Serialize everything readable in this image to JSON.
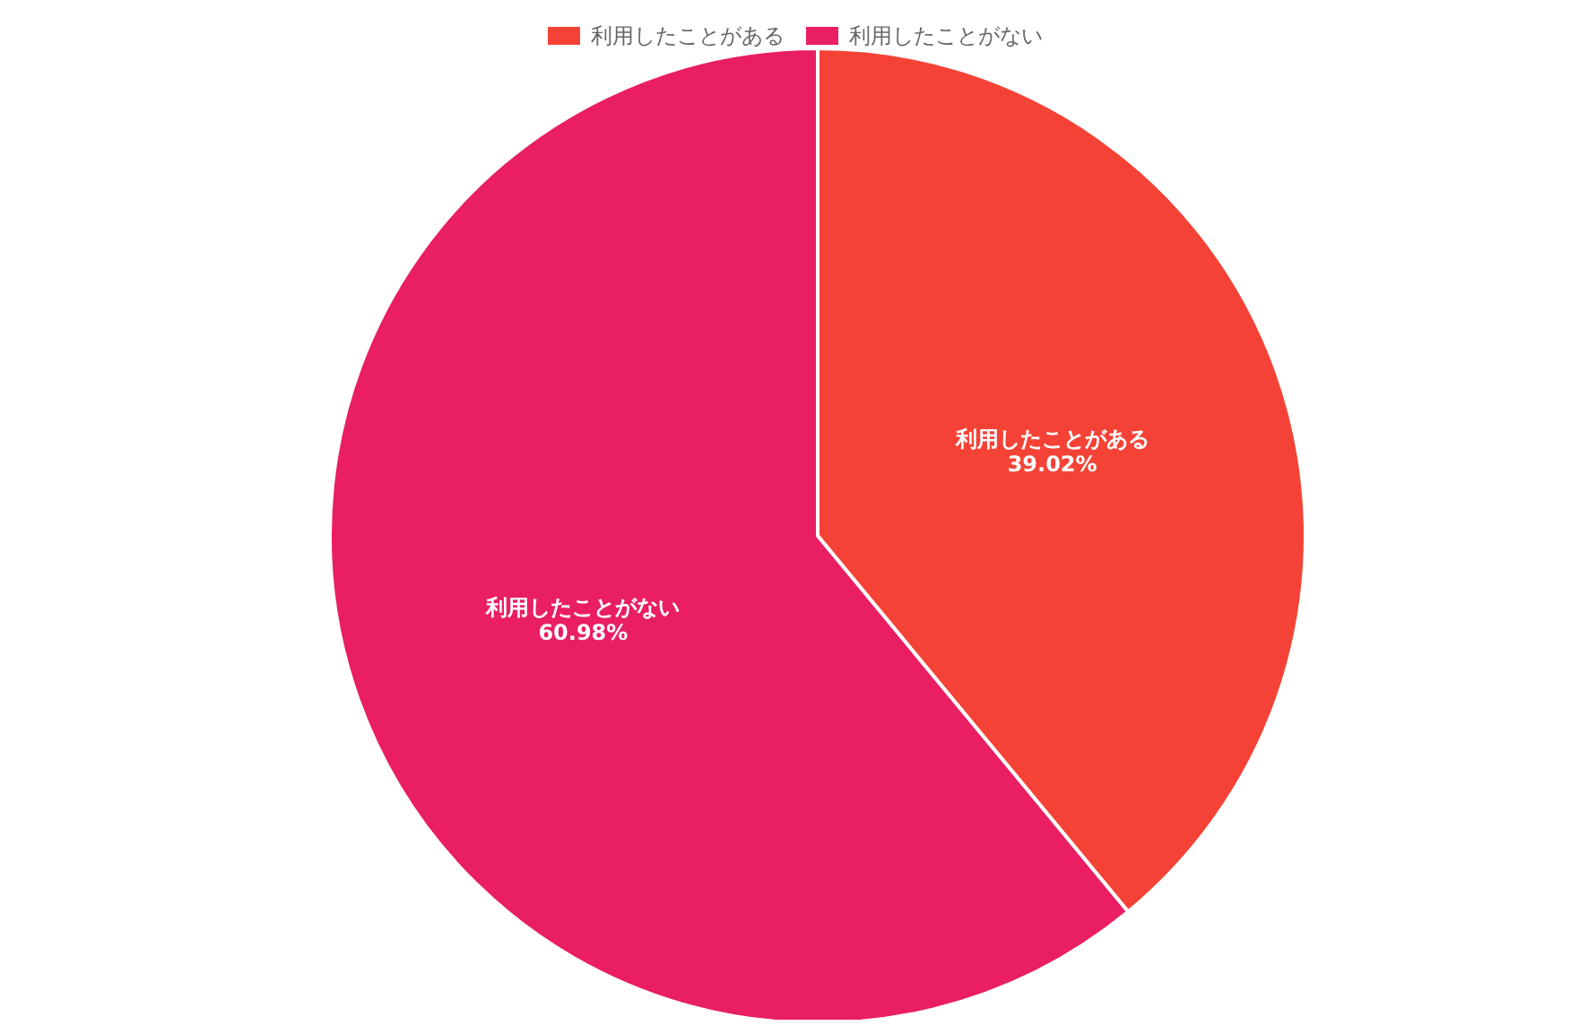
{
  "chart_data": {
    "type": "pie",
    "categories": [
      "利用したことがある",
      "利用したことがない"
    ],
    "values": [
      39.02,
      60.98
    ],
    "colors": [
      "#f44336",
      "#e91e63"
    ],
    "value_labels": [
      "39.02%",
      "60.98%"
    ],
    "legend": "top"
  }
}
